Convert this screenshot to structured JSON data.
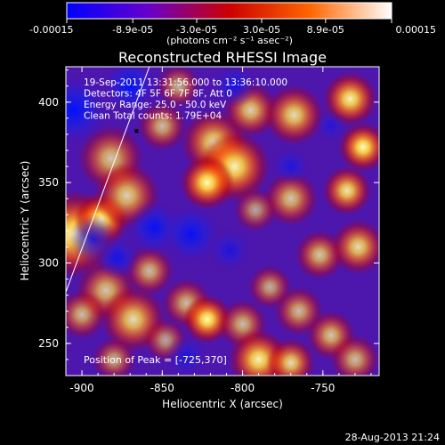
{
  "chart_data": {
    "type": "heatmap",
    "title": "Reconstructed RHESSI Image",
    "xlabel": "Heliocentric X (arcsec)",
    "ylabel": "Heliocentric Y (arcsec)",
    "xlim": [
      -910,
      -715
    ],
    "ylim": [
      230,
      422
    ],
    "x_ticks": [
      -900,
      -850,
      -800,
      -750
    ],
    "x_tick_labels": [
      "-900",
      "-850",
      "-800",
      "-750"
    ],
    "y_ticks": [
      250,
      300,
      350,
      400
    ],
    "y_tick_labels": [
      "250",
      "300",
      "350",
      "400"
    ],
    "colorbar": {
      "ticks": [
        -0.00015,
        -8.9e-05,
        -3e-05,
        3e-05,
        8.9e-05,
        0.00015
      ],
      "tick_labels": [
        "-0.00015",
        "-8.9e-05",
        "-3.0e-05",
        "3.0e-05",
        "8.9e-05",
        "0.00015"
      ],
      "range": [
        -0.00015,
        0.00015
      ],
      "units_label": "(photons cm⁻² s⁻¹ asec⁻²)",
      "colormap": [
        "#0000ff",
        "#6600cc",
        "#cc0000",
        "#ff6600",
        "#ffffff"
      ]
    },
    "annotations": [
      "19-Sep-2011 13:31:56.000 to 13:36:10.000",
      "Detectors: 4F 5F 6F 7F 8F, Att 0",
      "Energy Range: 25.0 - 50.0 keV",
      "Clean     Total counts: 1.79E+04"
    ],
    "peak_label": "Position of Peak = [-725,370]",
    "peak_position": [
      -725,
      370
    ],
    "limb_line": [
      [
        -910,
        282
      ],
      [
        -858,
        422
      ]
    ],
    "marker_position": [
      -866,
      382
    ],
    "blobs": [
      {
        "x": -905,
        "y": 318,
        "r": 16,
        "a": 1.0
      },
      {
        "x": -888,
        "y": 327,
        "r": 10,
        "a": 1.0
      },
      {
        "x": -882,
        "y": 365,
        "r": 12,
        "a": 0.75
      },
      {
        "x": -872,
        "y": 342,
        "r": 12,
        "a": 0.8
      },
      {
        "x": -850,
        "y": 385,
        "r": 9,
        "a": 0.7
      },
      {
        "x": -840,
        "y": 410,
        "r": 8,
        "a": 0.65
      },
      {
        "x": -818,
        "y": 375,
        "r": 12,
        "a": 0.85
      },
      {
        "x": -805,
        "y": 360,
        "r": 13,
        "a": 0.95
      },
      {
        "x": -822,
        "y": 350,
        "r": 10,
        "a": 1.0
      },
      {
        "x": -795,
        "y": 395,
        "r": 10,
        "a": 0.8
      },
      {
        "x": -768,
        "y": 392,
        "r": 11,
        "a": 0.85
      },
      {
        "x": -733,
        "y": 402,
        "r": 10,
        "a": 0.95
      },
      {
        "x": -725,
        "y": 372,
        "r": 9,
        "a": 1.0
      },
      {
        "x": -735,
        "y": 345,
        "r": 9,
        "a": 0.9
      },
      {
        "x": -770,
        "y": 340,
        "r": 10,
        "a": 0.75
      },
      {
        "x": -792,
        "y": 333,
        "r": 8,
        "a": 0.6
      },
      {
        "x": -752,
        "y": 305,
        "r": 9,
        "a": 0.75
      },
      {
        "x": -728,
        "y": 310,
        "r": 10,
        "a": 0.85
      },
      {
        "x": -858,
        "y": 295,
        "r": 9,
        "a": 0.7
      },
      {
        "x": -885,
        "y": 283,
        "r": 11,
        "a": 0.75
      },
      {
        "x": -900,
        "y": 268,
        "r": 9,
        "a": 0.7
      },
      {
        "x": -868,
        "y": 265,
        "r": 12,
        "a": 0.85
      },
      {
        "x": -835,
        "y": 275,
        "r": 9,
        "a": 0.7
      },
      {
        "x": -822,
        "y": 265,
        "r": 9,
        "a": 1.0
      },
      {
        "x": -848,
        "y": 252,
        "r": 8,
        "a": 0.6
      },
      {
        "x": -783,
        "y": 285,
        "r": 8,
        "a": 0.65
      },
      {
        "x": -800,
        "y": 262,
        "r": 9,
        "a": 0.7
      },
      {
        "x": -765,
        "y": 270,
        "r": 9,
        "a": 0.7
      },
      {
        "x": -745,
        "y": 255,
        "r": 9,
        "a": 0.75
      },
      {
        "x": -790,
        "y": 240,
        "r": 11,
        "a": 0.95
      },
      {
        "x": -770,
        "y": 238,
        "r": 9,
        "a": 0.85
      },
      {
        "x": -730,
        "y": 240,
        "r": 9,
        "a": 0.7
      },
      {
        "x": -880,
        "y": 240,
        "r": 8,
        "a": 0.65
      },
      {
        "x": -905,
        "y": 395,
        "r": -13,
        "a": 1.0
      },
      {
        "x": -870,
        "y": 410,
        "r": -10,
        "a": 1.0
      },
      {
        "x": -893,
        "y": 315,
        "r": -9,
        "a": 0.8
      },
      {
        "x": -878,
        "y": 303,
        "r": -8,
        "a": 0.7
      },
      {
        "x": -855,
        "y": 322,
        "r": -10,
        "a": 0.9
      },
      {
        "x": -805,
        "y": 410,
        "r": -8,
        "a": 0.7
      },
      {
        "x": -832,
        "y": 318,
        "r": -11,
        "a": 0.9
      },
      {
        "x": -808,
        "y": 308,
        "r": -8,
        "a": 0.6
      },
      {
        "x": -770,
        "y": 360,
        "r": -7,
        "a": 0.6
      },
      {
        "x": -745,
        "y": 385,
        "r": -6,
        "a": 0.5
      },
      {
        "x": -835,
        "y": 242,
        "r": -8,
        "a": 0.6
      }
    ]
  },
  "footer": {
    "timestamp": "28-Aug-2013 21:24"
  }
}
